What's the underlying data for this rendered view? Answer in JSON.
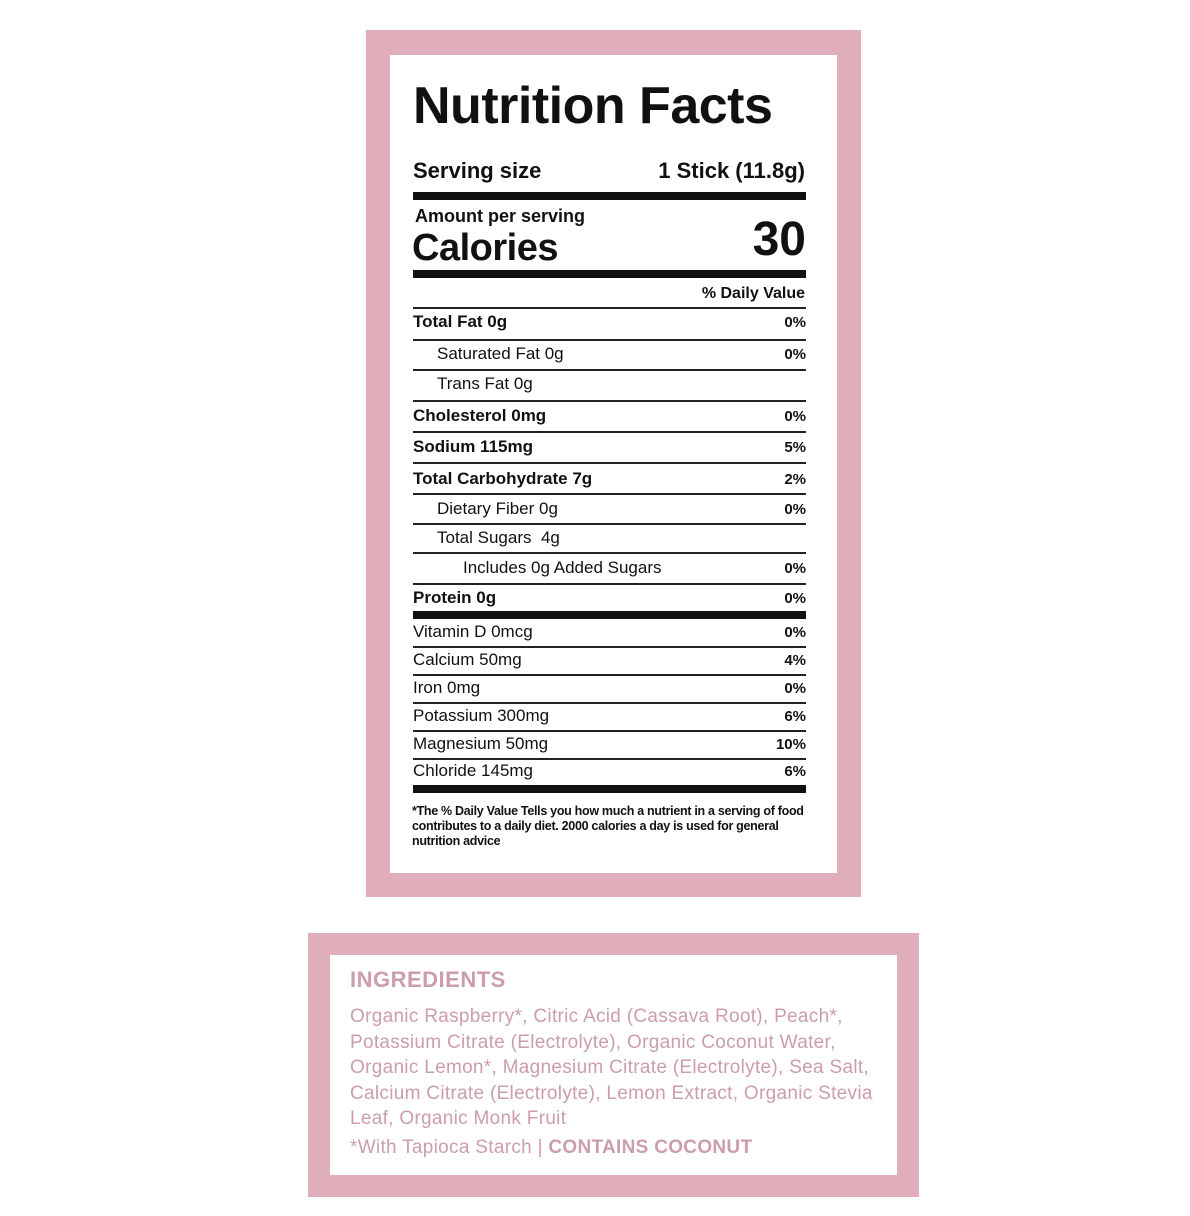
{
  "nutrition": {
    "title": "Nutrition Facts",
    "serving_label": "Serving size",
    "serving_value": "1 Stick (11.8g)",
    "amount_per_serving": "Amount per serving",
    "calories_label": "Calories",
    "calories_value": "30",
    "daily_value_header": "% Daily Value",
    "rows": [
      {
        "label": "Total Fat 0g",
        "pct": "0%",
        "bold": true,
        "indent": 0
      },
      {
        "label": "Saturated Fat 0g",
        "pct": "0%",
        "bold": false,
        "indent": 1
      },
      {
        "label": "Trans Fat 0g",
        "pct": "",
        "bold": false,
        "indent": 1
      },
      {
        "label": "Cholesterol 0mg",
        "pct": "0%",
        "bold": true,
        "indent": 0
      },
      {
        "label": "Sodium 115mg",
        "pct": "5%",
        "bold": true,
        "indent": 0
      },
      {
        "label": "Total Carbohydrate 7g",
        "pct": "2%",
        "bold": true,
        "indent": 0
      },
      {
        "label": "Dietary Fiber 0g",
        "pct": "0%",
        "bold": false,
        "indent": 1
      },
      {
        "label": "Total Sugars  4g",
        "pct": "",
        "bold": false,
        "indent": 1
      },
      {
        "label": "Includes 0g Added Sugars",
        "pct": "0%",
        "bold": false,
        "indent": 2
      },
      {
        "label": "Protein 0g",
        "pct": "0%",
        "bold": true,
        "indent": 0
      },
      {
        "label": "Vitamin D 0mcg",
        "pct": "0%",
        "bold": false,
        "indent": 0
      },
      {
        "label": "Calcium 50mg",
        "pct": "4%",
        "bold": false,
        "indent": 0
      },
      {
        "label": "Iron 0mg",
        "pct": "0%",
        "bold": false,
        "indent": 0
      },
      {
        "label": "Potassium 300mg",
        "pct": "6%",
        "bold": false,
        "indent": 0
      },
      {
        "label": "Magnesium 50mg",
        "pct": "10%",
        "bold": false,
        "indent": 0
      },
      {
        "label": "Chloride 145mg",
        "pct": "6%",
        "bold": false,
        "indent": 0
      }
    ],
    "footnote": "*The % Daily Value Tells you how much a nutrient in a serving of food contributes to a daily diet. 2000 calories a day is used for general nutrition advice"
  },
  "ingredients": {
    "title": "INGREDIENTS",
    "text": "Organic Raspberry*, Citric Acid (Cassava Root), Peach*, Potassium Citrate (Electrolyte), Organic Coconut Water, Organic Lemon*, Magnesium Citrate (Electrolyte), Sea Salt, Calcium Citrate (Electrolyte), Lemon Extract, Organic Stevia Leaf, Organic Monk Fruit",
    "note": "*With Tapioca Starch | ",
    "allergen": "CONTAINS COCONUT"
  },
  "colors": {
    "border_pink": "#dfaeba",
    "ingredient_text": "#cc9dab",
    "label_text": "#111111"
  }
}
